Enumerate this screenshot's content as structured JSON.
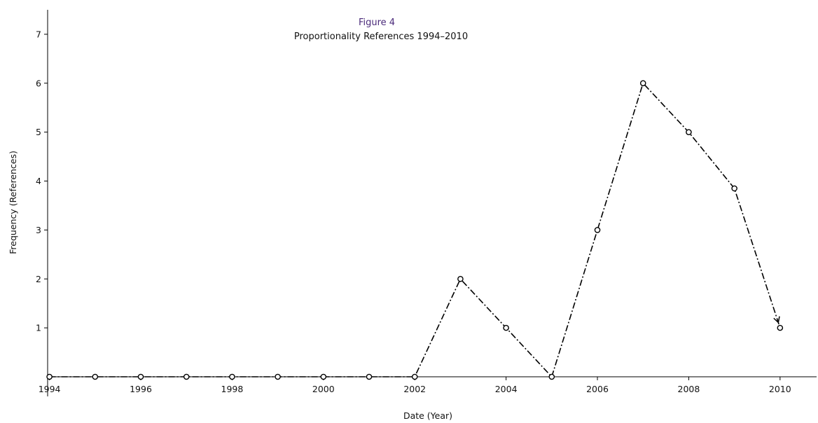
{
  "chart_data": {
    "type": "line",
    "title": "Figure 4",
    "subtitle": "Proportionality References 1994–2010",
    "xlabel": "Date (Year)",
    "ylabel": "Frequency (References)",
    "xlim": [
      1993.96,
      2010.8
    ],
    "ylim": [
      0,
      7.5
    ],
    "x_ticks": [
      1994,
      1996,
      1998,
      2000,
      2002,
      2004,
      2006,
      2008,
      2010
    ],
    "y_ticks": [
      1,
      2,
      3,
      4,
      5,
      6,
      7
    ],
    "grid": false,
    "legend": "none",
    "line_style": "dash-dot",
    "marker": "open-circle",
    "end_marker": "arrowhead",
    "color": "#000000",
    "series": [
      {
        "x": [
          1994,
          1995,
          1996,
          1997,
          1998,
          1999,
          2000,
          2001,
          2002,
          2003,
          2004,
          2005,
          2006,
          2007,
          2008,
          2009,
          2010
        ],
        "values": [
          0,
          0,
          0,
          0,
          0,
          0,
          0,
          0,
          0,
          2,
          1,
          0,
          3,
          6,
          5,
          3.85,
          1
        ]
      }
    ]
  }
}
